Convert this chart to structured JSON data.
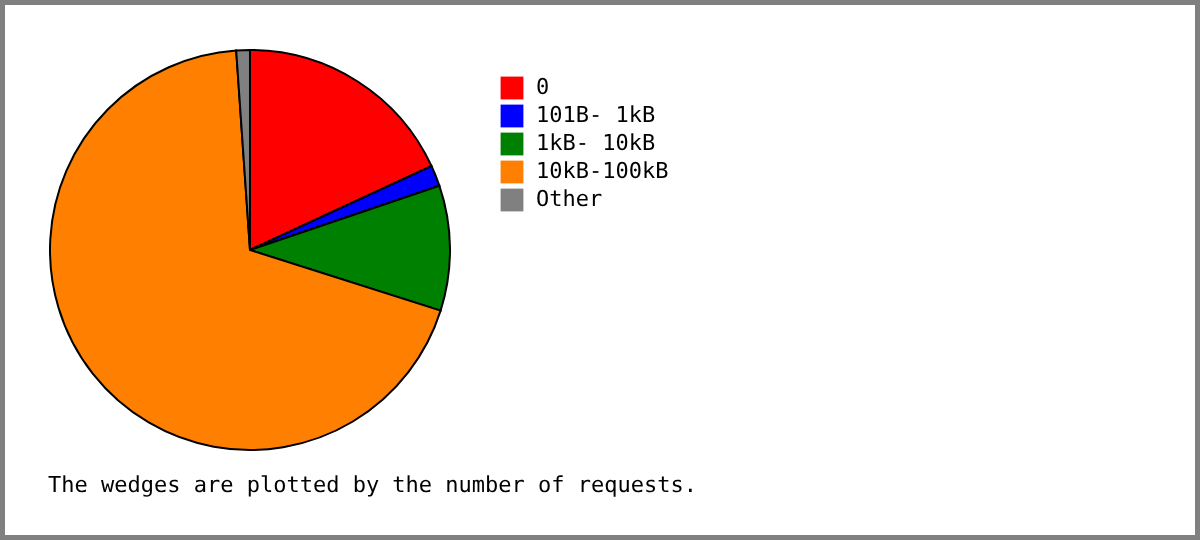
{
  "chart_data": {
    "type": "pie",
    "categories": [
      "0",
      "101B- 1kB",
      "1kB- 10kB",
      "10kB-100kB",
      "Other"
    ],
    "values": [
      18.1,
      1.7,
      10.1,
      69.0,
      1.1
    ],
    "colors": [
      "#ff0000",
      "#0000ff",
      "#008000",
      "#ff8000",
      "#808080"
    ],
    "legend": "right",
    "annotations": [
      "The wedges are plotted by the number of requests."
    ]
  }
}
